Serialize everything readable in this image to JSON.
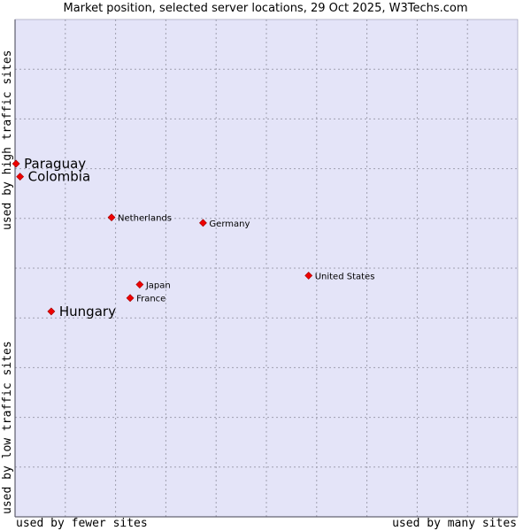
{
  "colors": {
    "plot_background": "#e4e4f8",
    "gridline": "#a0a0b0",
    "marker": "#ee0000",
    "axis": "#000000"
  },
  "chart_data": {
    "type": "scatter",
    "title": "Market position, selected server locations, 29 Oct 2025, W3Techs.com",
    "xlabel_left": "used by fewer sites",
    "xlabel_right": "used by many sites",
    "ylabel_top": "used by high traffic sites",
    "ylabel_bottom": "used by low traffic sites",
    "xlim": [
      0,
      100
    ],
    "ylim": [
      0,
      100
    ],
    "grid": true,
    "grid_divisions": 10,
    "points": [
      {
        "name": "Paraguay",
        "x": 0.2,
        "y": 71.0,
        "highlight": true
      },
      {
        "name": "Colombia",
        "x": 1.0,
        "y": 68.4,
        "highlight": true
      },
      {
        "name": "Netherlands",
        "x": 19.2,
        "y": 60.2,
        "highlight": false
      },
      {
        "name": "Germany",
        "x": 37.4,
        "y": 59.1,
        "highlight": false
      },
      {
        "name": "United States",
        "x": 58.4,
        "y": 48.5,
        "highlight": false
      },
      {
        "name": "Japan",
        "x": 24.8,
        "y": 46.7,
        "highlight": false
      },
      {
        "name": "France",
        "x": 22.9,
        "y": 44.0,
        "highlight": false
      },
      {
        "name": "Hungary",
        "x": 7.2,
        "y": 41.3,
        "highlight": true
      }
    ]
  }
}
